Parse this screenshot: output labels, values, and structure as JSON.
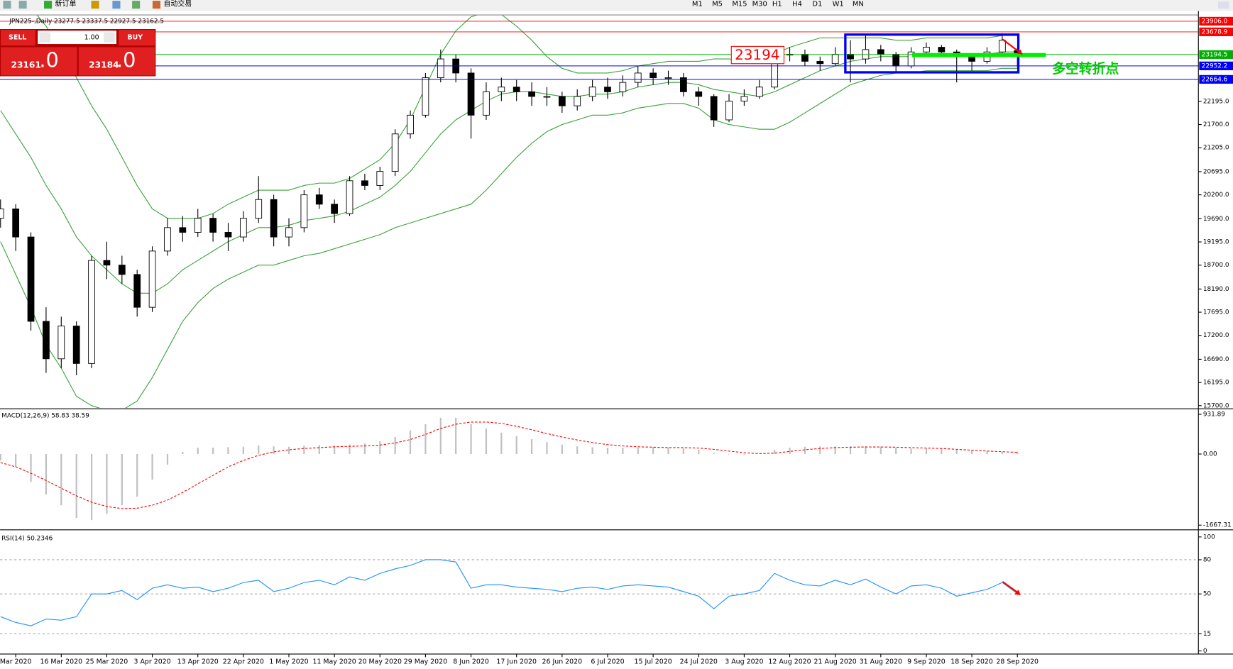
{
  "toolbar": {
    "new_order": "新订单",
    "auto_trading": "自动交易",
    "timeframes": [
      "M1",
      "M5",
      "M15",
      "M30",
      "H1",
      "H4",
      "D1",
      "W1",
      "MN"
    ]
  },
  "trade_panel": {
    "sell": "SELL",
    "lots": "1.00",
    "buy": "BUY",
    "sell_price": "23161",
    "sell_price_tail": ".0",
    "buy_price": "23184",
    "buy_price_tail": ".0"
  },
  "annotations": {
    "price_tag": "23194",
    "note": "多空转折点"
  },
  "chart_data": [
    {
      "type": "candlestick",
      "title": "JPN225-,Daily  23277.5 23337.5 22927.5 23162.5",
      "categories": [
        null,
        "Mar 2020",
        null,
        null,
        "16 Mar 2020",
        null,
        null,
        "25 Mar 2020",
        null,
        null,
        "3 Apr 2020",
        null,
        null,
        "13 Apr 2020",
        null,
        null,
        "22 Apr 2020",
        null,
        null,
        "1 May 2020",
        null,
        null,
        "11 May 2020",
        null,
        null,
        "20 May 2020",
        null,
        null,
        "29 May 2020",
        null,
        null,
        "8 Jun 2020",
        null,
        null,
        "17 Jun 2020",
        null,
        null,
        "26 Jun 2020",
        null,
        null,
        "6 Jul 2020",
        null,
        null,
        "15 Jul 2020",
        null,
        null,
        "24 Jul 2020",
        null,
        null,
        "3 Aug 2020",
        null,
        null,
        "12 Aug 2020",
        null,
        null,
        "21 Aug 2020",
        null,
        null,
        "31 Aug 2020",
        null,
        null,
        "9 Sep 2020",
        null,
        null,
        "18 Sep 2020",
        null,
        null,
        "28 Sep 2020"
      ],
      "open": [
        19700,
        19900,
        19300,
        17500,
        16700,
        17400,
        16600,
        18800,
        18700,
        18500,
        17800,
        19000,
        19500,
        19400,
        19700,
        19400,
        19300,
        19700,
        20100,
        19300,
        19500,
        20200,
        20000,
        19800,
        20500,
        20400,
        20700,
        21500,
        21900,
        22700,
        23100,
        22800,
        21900,
        22400,
        22500,
        22400,
        22300,
        22300,
        22100,
        22300,
        22500,
        22400,
        22600,
        22800,
        22700,
        22700,
        22400,
        22300,
        21800,
        22200,
        22300,
        22500,
        23200,
        23200,
        23050,
        23000,
        23200,
        23100,
        23300,
        23200,
        22950,
        23250,
        23350,
        23250,
        23150,
        23050,
        23250,
        23277.5
      ],
      "high": [
        20100,
        20000,
        19400,
        17800,
        17600,
        17500,
        18900,
        19200,
        18900,
        18600,
        19100,
        19700,
        19750,
        19900,
        19800,
        19600,
        19850,
        20600,
        20200,
        19700,
        20300,
        20350,
        20100,
        20600,
        20650,
        20800,
        21600,
        22000,
        22800,
        23300,
        23200,
        22900,
        22600,
        22700,
        22650,
        22600,
        22500,
        22400,
        22450,
        22650,
        22700,
        22750,
        22950,
        22900,
        22850,
        22800,
        22500,
        22350,
        22350,
        22450,
        22650,
        23300,
        23350,
        23300,
        23150,
        23350,
        23500,
        23600,
        23400,
        23250,
        23350,
        23450,
        23400,
        23300,
        23200,
        23350,
        23650,
        23337.5
      ],
      "low": [
        19500,
        19000,
        17300,
        16400,
        16500,
        16350,
        16500,
        18400,
        18300,
        17600,
        17700,
        18900,
        19200,
        19300,
        19200,
        19000,
        19200,
        19600,
        19100,
        19100,
        19400,
        19900,
        19600,
        19750,
        20300,
        20300,
        20600,
        21400,
        21850,
        22600,
        22600,
        21400,
        21800,
        22200,
        22200,
        22100,
        22100,
        21950,
        22000,
        22200,
        22250,
        22300,
        22500,
        22550,
        22550,
        22300,
        22100,
        21650,
        21750,
        22100,
        22250,
        22450,
        23050,
        22950,
        22850,
        22950,
        22600,
        23000,
        23050,
        22800,
        22900,
        23200,
        23150,
        22600,
        22850,
        23000,
        23200,
        22927.5
      ],
      "close": [
        19900,
        19300,
        17500,
        16700,
        17400,
        16600,
        18800,
        18700,
        18500,
        17800,
        19000,
        19500,
        19400,
        19700,
        19400,
        19300,
        19700,
        20100,
        19300,
        19500,
        20200,
        20000,
        19800,
        20500,
        20400,
        20700,
        21500,
        21900,
        22700,
        23100,
        22800,
        21900,
        22400,
        22500,
        22400,
        22300,
        22300,
        22100,
        22300,
        22500,
        22400,
        22600,
        22800,
        22700,
        22700,
        22400,
        22300,
        21800,
        22200,
        22300,
        22500,
        23200,
        23200,
        23050,
        23000,
        23200,
        23100,
        23300,
        23200,
        22950,
        23250,
        23350,
        23250,
        23150,
        23050,
        23250,
        23500,
        23162.5
      ],
      "up_color": "#ffffff",
      "down_color": "#000000",
      "wick_color": "#000000",
      "bands": {
        "color": "#3aa23a",
        "upper": [
          24800,
          24500,
          24200,
          23800,
          23300,
          22700,
          22100,
          21600,
          21000,
          20400,
          19900,
          19700,
          19700,
          19700,
          19800,
          20000,
          20150,
          20300,
          20300,
          20300,
          20400,
          20450,
          20450,
          20550,
          20750,
          20950,
          21300,
          21800,
          22500,
          23200,
          23700,
          24000,
          24100,
          24050,
          23800,
          23500,
          23150,
          22900,
          22800,
          22800,
          22800,
          22850,
          22950,
          23000,
          23050,
          23050,
          23050,
          23100,
          23100,
          23050,
          23000,
          23200,
          23350,
          23450,
          23550,
          23550,
          23550,
          23550,
          23550,
          23500,
          23500,
          23550,
          23550,
          23550,
          23550,
          23550,
          23600,
          23600
        ],
        "middle": [
          22000,
          21500,
          21000,
          20400,
          19900,
          19300,
          18900,
          18600,
          18300,
          18100,
          18100,
          18300,
          18600,
          18800,
          19000,
          19200,
          19350,
          19500,
          19500,
          19550,
          19650,
          19700,
          19750,
          19850,
          20000,
          20150,
          20400,
          20700,
          21100,
          21500,
          21800,
          22000,
          22200,
          22350,
          22400,
          22400,
          22350,
          22300,
          22300,
          22350,
          22350,
          22400,
          22500,
          22550,
          22600,
          22600,
          22550,
          22450,
          22400,
          22350,
          22300,
          22400,
          22550,
          22700,
          22850,
          22950,
          23050,
          23100,
          23150,
          23150,
          23150,
          23200,
          23200,
          23200,
          23200,
          23200,
          23250,
          23250
        ],
        "lower": [
          19200,
          18500,
          17800,
          17000,
          16500,
          15900,
          15700,
          15600,
          15600,
          15800,
          16300,
          16900,
          17500,
          17900,
          18200,
          18400,
          18550,
          18700,
          18700,
          18800,
          18900,
          18950,
          19050,
          19150,
          19250,
          19350,
          19500,
          19600,
          19700,
          19800,
          19900,
          20000,
          20300,
          20650,
          21000,
          21300,
          21550,
          21700,
          21800,
          21900,
          21900,
          21950,
          22050,
          22100,
          22150,
          22150,
          22050,
          21800,
          21700,
          21650,
          21600,
          21600,
          21750,
          21950,
          22150,
          22350,
          22550,
          22650,
          22750,
          22800,
          22800,
          22850,
          22850,
          22850,
          22850,
          22850,
          22900,
          22900
        ]
      },
      "levels": [
        {
          "value": 23906.0,
          "label": "23906.0",
          "color": "#ff0000"
        },
        {
          "value": 23678.9,
          "label": "23678.9",
          "color": "#ff0000"
        },
        {
          "value": 23194.5,
          "label": "23194.5",
          "color": "#00b000"
        },
        {
          "value": 22952.2,
          "label": "22952.2",
          "color": "#0000ff"
        },
        {
          "value": 22664.6,
          "label": "22664.6",
          "color": "#0000ff"
        }
      ],
      "ylim": [
        15650,
        24023
      ],
      "yticks": [
        {
          "value": 22195,
          "label": "22195.0"
        },
        {
          "value": 21700,
          "label": "21700.0"
        },
        {
          "value": 21205,
          "label": "21205.0"
        },
        {
          "value": 20695,
          "label": "20695.0"
        },
        {
          "value": 20200,
          "label": "20200.0"
        },
        {
          "value": 19690,
          "label": "19690.0"
        },
        {
          "value": 19195,
          "label": "19195.0"
        },
        {
          "value": 18700,
          "label": "18700.0"
        },
        {
          "value": 18190,
          "label": "18190.0"
        },
        {
          "value": 17695,
          "label": "17695.0"
        },
        {
          "value": 17200,
          "label": "17200.0"
        },
        {
          "value": 16690,
          "label": "16690.0"
        },
        {
          "value": 16195,
          "label": "16195.0"
        },
        {
          "value": 15700,
          "label": "15700.0"
        }
      ]
    },
    {
      "type": "macd",
      "title": "MACD(12,26,9) 58.83 38.59",
      "histogram": [
        -150,
        -300,
        -650,
        -950,
        -1200,
        -1500,
        -1550,
        -1400,
        -1200,
        -1000,
        -600,
        -250,
        50,
        150,
        150,
        160,
        170,
        200,
        180,
        170,
        200,
        210,
        200,
        220,
        250,
        300,
        400,
        550,
        700,
        850,
        850,
        700,
        600,
        500,
        420,
        350,
        280,
        220,
        180,
        160,
        150,
        150,
        150,
        160,
        150,
        130,
        100,
        30,
        -10,
        -20,
        0,
        100,
        150,
        170,
        180,
        180,
        180,
        180,
        170,
        150,
        130,
        140,
        130,
        100,
        80,
        60,
        50,
        58.83
      ],
      "signal": [
        -200,
        -300,
        -450,
        -620,
        -800,
        -980,
        -1130,
        -1230,
        -1280,
        -1270,
        -1200,
        -1080,
        -900,
        -700,
        -500,
        -300,
        -150,
        -30,
        50,
        100,
        130,
        150,
        170,
        180,
        190,
        210,
        260,
        340,
        460,
        600,
        700,
        750,
        750,
        720,
        650,
        570,
        480,
        400,
        330,
        270,
        220,
        190,
        170,
        160,
        150,
        150,
        140,
        110,
        70,
        30,
        10,
        20,
        60,
        100,
        130,
        150,
        160,
        165,
        165,
        160,
        150,
        140,
        130,
        110,
        90,
        70,
        55,
        38.59
      ],
      "hist_color": "#c0c0c0",
      "signal_color": "#ff0000",
      "ylim": [
        -1667.31,
        931.89
      ],
      "yticks": [
        {
          "value": 931.89,
          "label": "931.89"
        },
        {
          "value": 0,
          "label": "0.00"
        },
        {
          "value": -1667.31,
          "label": "-1667.31"
        }
      ]
    },
    {
      "type": "line",
      "title": "RSI(14) 50.2346",
      "values": [
        30,
        25,
        22,
        28,
        27,
        30,
        50,
        50,
        53,
        45,
        55,
        58,
        55,
        56,
        52,
        55,
        60,
        62,
        52,
        55,
        60,
        62,
        58,
        65,
        62,
        68,
        72,
        75,
        80,
        80,
        78,
        55,
        58,
        58,
        56,
        55,
        54,
        52,
        55,
        56,
        54,
        57,
        58,
        57,
        56,
        52,
        48,
        37,
        48,
        50,
        53,
        68,
        62,
        58,
        57,
        62,
        58,
        63,
        56,
        50,
        57,
        58,
        55,
        48,
        51,
        54,
        60,
        50.2346
      ],
      "color": "#1e90ff",
      "ylim": [
        0,
        100
      ],
      "yticks": [
        100,
        80,
        50,
        15,
        0
      ]
    }
  ]
}
